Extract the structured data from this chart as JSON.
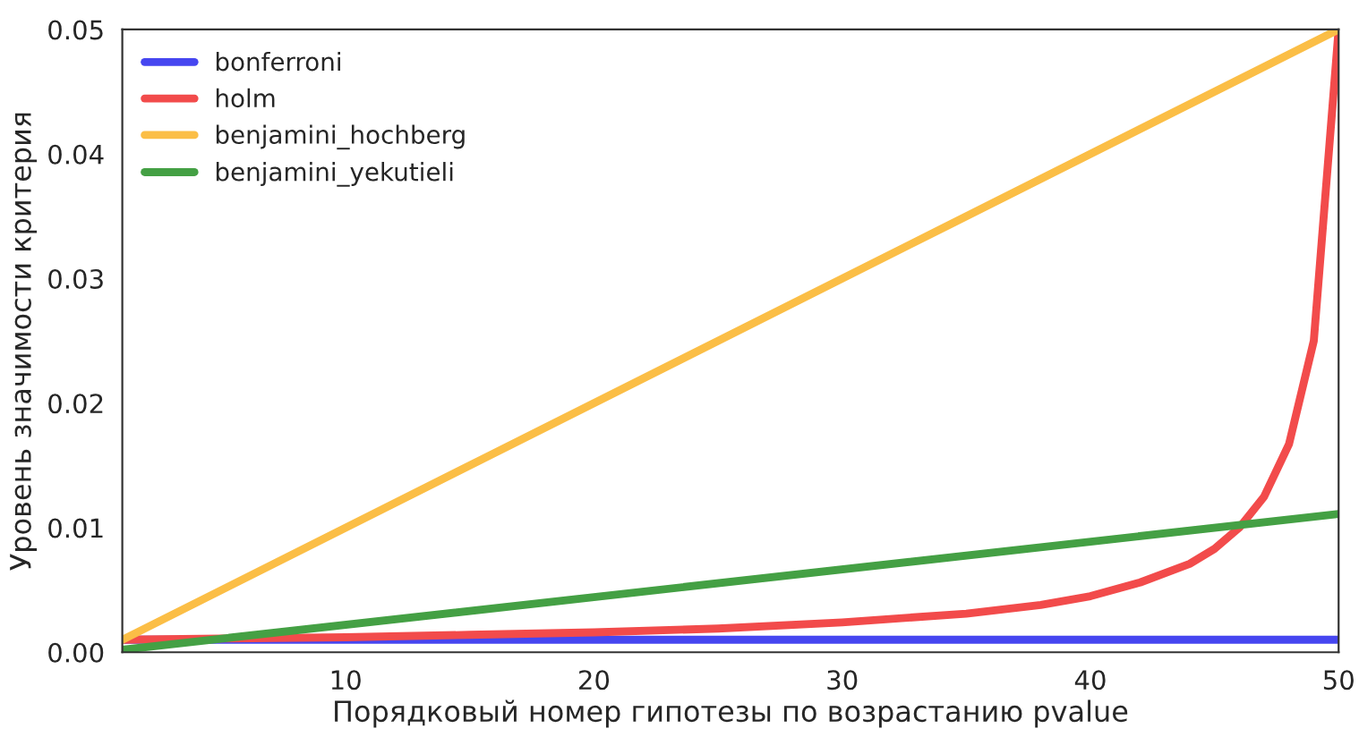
{
  "chart_data": {
    "type": "line",
    "xlabel": "Порядковый номер гипотезы по возрастанию pvalue",
    "ylabel": "Уровень значимости критерия",
    "xlim": [
      1,
      50
    ],
    "xticks": [
      10,
      20,
      30,
      40,
      50
    ],
    "ylim": [
      0,
      0.05
    ],
    "yticks": [
      {
        "value": 0,
        "label": "0.00"
      },
      {
        "value": 0.01,
        "label": "0.01"
      },
      {
        "value": 0.02,
        "label": "0.02"
      },
      {
        "value": 0.03,
        "label": "0.03"
      },
      {
        "value": 0.04,
        "label": "0.04"
      },
      {
        "value": 0.05,
        "label": "0.05"
      }
    ],
    "grid": false,
    "legend": "top left",
    "marker": "none",
    "line_style": "solid",
    "series": [
      {
        "name": "bonferroni",
        "color": "#4646f0",
        "x": [
          1,
          50
        ],
        "values": [
          0.001,
          0.001
        ]
      },
      {
        "name": "holm",
        "color": "#f24b4b",
        "x": [
          1,
          5,
          10,
          15,
          20,
          25,
          30,
          35,
          38,
          40,
          42,
          44,
          45,
          46,
          47,
          48,
          49,
          50
        ],
        "values": [
          0.001,
          0.0011,
          0.0012,
          0.0014,
          0.0016,
          0.0019,
          0.0024,
          0.0031,
          0.0038,
          0.0045,
          0.0056,
          0.0071,
          0.0083,
          0.01,
          0.0125,
          0.0167,
          0.025,
          0.05
        ]
      },
      {
        "name": "benjamini_hochberg",
        "color": "#fbbe46",
        "x": [
          1,
          50
        ],
        "values": [
          0.001,
          0.05
        ]
      },
      {
        "name": "benjamini_yekutieli",
        "color": "#44a044",
        "x": [
          1,
          50
        ],
        "values": [
          0.0002,
          0.0111
        ]
      }
    ]
  }
}
